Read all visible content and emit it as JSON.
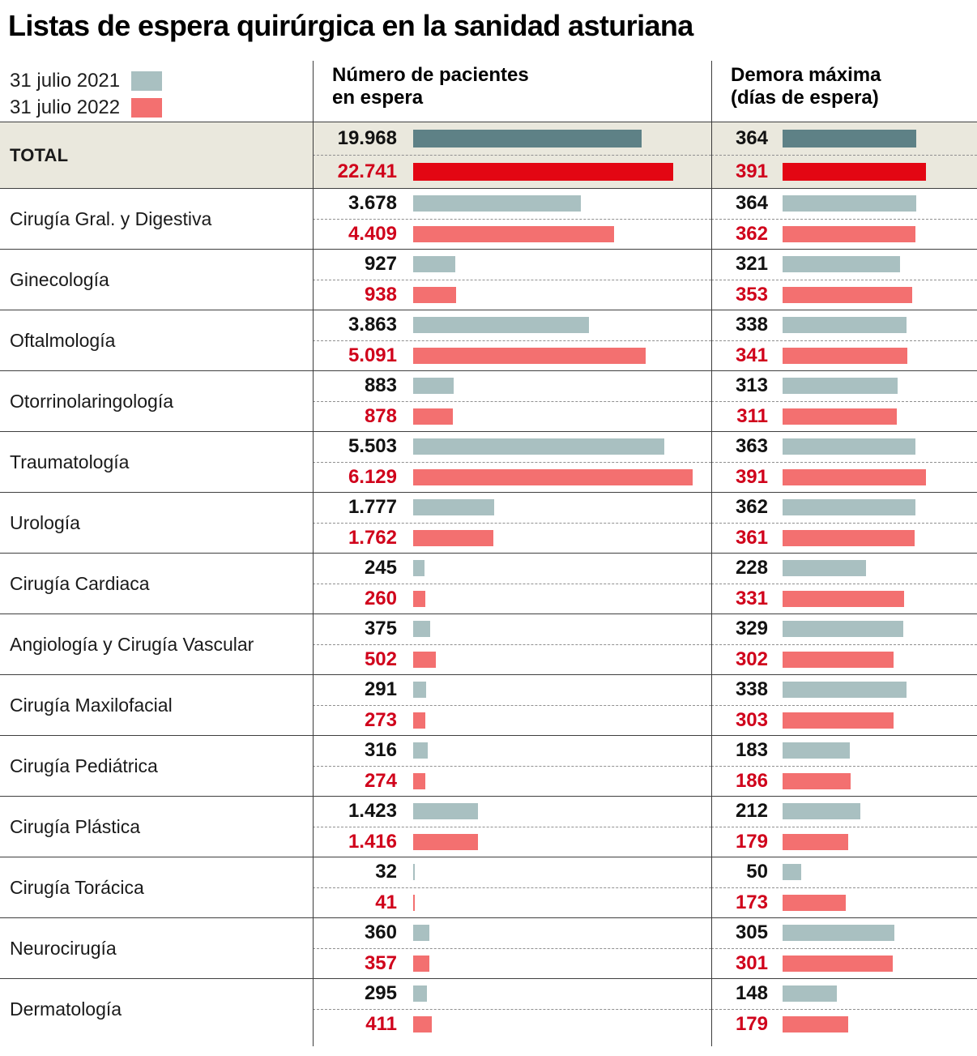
{
  "title": "Listas de espera quirúrgica en la sanidad asturiana",
  "legend": {
    "items": [
      {
        "label": "31 julio 2021",
        "color": "#a9c0c1"
      },
      {
        "label": "31 julio 2022",
        "color": "#f37070"
      }
    ]
  },
  "column_headers": {
    "patients": "Número de pacientes\nen espera",
    "days": "Demora máxima\n(días de espera)"
  },
  "colors": {
    "bar_2021": "#a9c0c1",
    "bar_2022": "#f37070",
    "total_bar_2021": "#5e8186",
    "total_bar_2022": "#e30613",
    "value_2021_text": "#121212",
    "value_2022_text": "#d0021b",
    "total_row_bg": "#eae8dd"
  },
  "chart_data": {
    "type": "bar",
    "title": "Listas de espera quirúrgica en la sanidad asturiana",
    "series_labels": [
      "31 julio 2021",
      "31 julio 2022"
    ],
    "measures": [
      "Número de pacientes en espera",
      "Demora máxima (días de espera)"
    ],
    "legend_position": "top-left",
    "grid": false,
    "rows": [
      {
        "label": "TOTAL",
        "is_total": true,
        "patients": [
          19968,
          22741
        ],
        "patients_display": [
          "19.968",
          "22.741"
        ],
        "days": [
          364,
          391
        ],
        "days_display": [
          "364",
          "391"
        ]
      },
      {
        "label": "Cirugía Gral. y Digestiva",
        "is_total": false,
        "patients": [
          3678,
          4409
        ],
        "patients_display": [
          "3.678",
          "4.409"
        ],
        "days": [
          364,
          362
        ],
        "days_display": [
          "364",
          "362"
        ]
      },
      {
        "label": "Ginecología",
        "is_total": false,
        "patients": [
          927,
          938
        ],
        "patients_display": [
          "927",
          "938"
        ],
        "days": [
          321,
          353
        ],
        "days_display": [
          "321",
          "353"
        ]
      },
      {
        "label": "Oftalmología",
        "is_total": false,
        "patients": [
          3863,
          5091
        ],
        "patients_display": [
          "3.863",
          "5.091"
        ],
        "days": [
          338,
          341
        ],
        "days_display": [
          "338",
          "341"
        ]
      },
      {
        "label": "Otorrinolaringología",
        "is_total": false,
        "patients": [
          883,
          878
        ],
        "patients_display": [
          "883",
          "878"
        ],
        "days": [
          313,
          311
        ],
        "days_display": [
          "313",
          "311"
        ]
      },
      {
        "label": "Traumatología",
        "is_total": false,
        "patients": [
          5503,
          6129
        ],
        "patients_display": [
          "5.503",
          "6.129"
        ],
        "days": [
          363,
          391
        ],
        "days_display": [
          "363",
          "391"
        ]
      },
      {
        "label": "Urología",
        "is_total": false,
        "patients": [
          1777,
          1762
        ],
        "patients_display": [
          "1.777",
          "1.762"
        ],
        "days": [
          362,
          361
        ],
        "days_display": [
          "362",
          "361"
        ]
      },
      {
        "label": "Cirugía Cardiaca",
        "is_total": false,
        "patients": [
          245,
          260
        ],
        "patients_display": [
          "245",
          "260"
        ],
        "days": [
          228,
          331
        ],
        "days_display": [
          "228",
          "331"
        ]
      },
      {
        "label": "Angiología y Cirugía Vascular",
        "is_total": false,
        "patients": [
          375,
          502
        ],
        "patients_display": [
          "375",
          "502"
        ],
        "days": [
          329,
          302
        ],
        "days_display": [
          "329",
          "302"
        ]
      },
      {
        "label": "Cirugía Maxilofacial",
        "is_total": false,
        "patients": [
          291,
          273
        ],
        "patients_display": [
          "291",
          "273"
        ],
        "days": [
          338,
          303
        ],
        "days_display": [
          "338",
          "303"
        ]
      },
      {
        "label": "Cirugía Pediátrica",
        "is_total": false,
        "patients": [
          316,
          274
        ],
        "patients_display": [
          "316",
          "274"
        ],
        "days": [
          183,
          186
        ],
        "days_display": [
          "183",
          "186"
        ]
      },
      {
        "label": "Cirugía Plástica",
        "is_total": false,
        "patients": [
          1423,
          1416
        ],
        "patients_display": [
          "1.423",
          "1.416"
        ],
        "days": [
          212,
          179
        ],
        "days_display": [
          "212",
          "179"
        ]
      },
      {
        "label": "Cirugía Torácica",
        "is_total": false,
        "patients": [
          32,
          41
        ],
        "patients_display": [
          "32",
          "41"
        ],
        "days": [
          50,
          173
        ],
        "days_display": [
          "50",
          "173"
        ]
      },
      {
        "label": "Neurocirugía",
        "is_total": false,
        "patients": [
          360,
          357
        ],
        "patients_display": [
          "360",
          "357"
        ],
        "days": [
          305,
          301
        ],
        "days_display": [
          "305",
          "301"
        ]
      },
      {
        "label": "Dermatología",
        "is_total": false,
        "patients": [
          295,
          411
        ],
        "patients_display": [
          "295",
          "411"
        ],
        "days": [
          148,
          179
        ],
        "days_display": [
          "148",
          "179"
        ]
      }
    ]
  }
}
